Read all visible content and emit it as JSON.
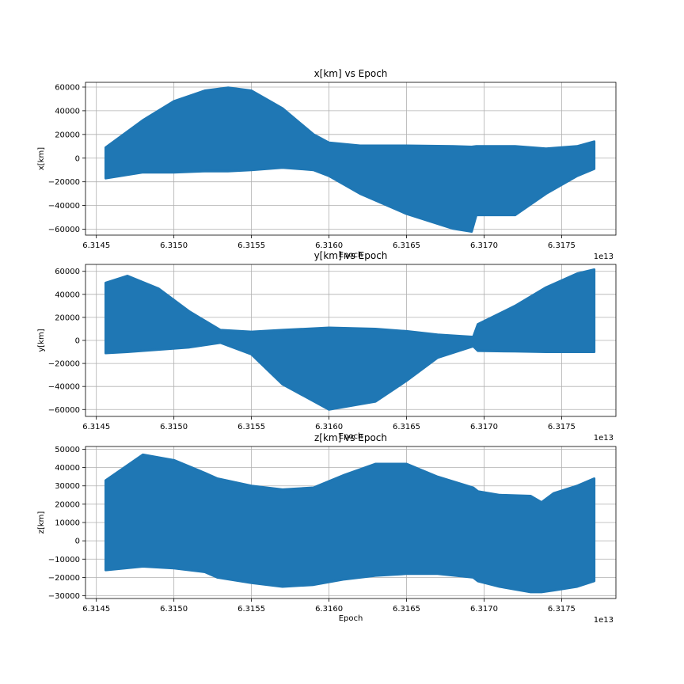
{
  "colors": {
    "series": "#1f77b4",
    "grid": "#b0b0b0",
    "axis": "#000000",
    "background": "#ffffff"
  },
  "chart_data": [
    {
      "type": "scatter",
      "title": "x[km] vs Epoch",
      "xlabel": "Epoch",
      "ylabel": "x[km]",
      "x_offset_label": "1e13",
      "xlim": [
        6.31443,
        6.31785
      ],
      "ylim": [
        -65000,
        64000
      ],
      "x_ticks": [
        6.3145,
        6.315,
        6.3155,
        6.316,
        6.3165,
        6.317,
        6.3175
      ],
      "x_tick_labels": [
        "6.3145",
        "6.3150",
        "6.3155",
        "6.3160",
        "6.3165",
        "6.3170",
        "6.3175"
      ],
      "y_ticks": [
        -60000,
        -40000,
        -20000,
        0,
        20000,
        40000,
        60000
      ],
      "y_tick_labels": [
        "−60000",
        "−40000",
        "−20000",
        "0",
        "20000",
        "40000",
        "60000"
      ],
      "grid": true,
      "legend": "none",
      "series": [
        {
          "x": [
            6.31456,
            6.3148,
            6.315,
            6.3152,
            6.31535,
            6.3155,
            6.3157,
            6.3159,
            6.316,
            6.3162,
            6.3165,
            6.3168,
            6.31692,
            6.31695,
            6.3172,
            6.3174,
            6.3176,
            6.31771
          ],
          "upper": [
            9000,
            32000,
            48000,
            57000,
            59500,
            57000,
            42000,
            20000,
            13000,
            10500,
            10500,
            10000,
            9500,
            10000,
            10000,
            8000,
            10000,
            14000
          ],
          "lower": [
            -17000,
            -12000,
            -12000,
            -11000,
            -11000,
            -10000,
            -8000,
            -10000,
            -15000,
            -30000,
            -47000,
            -59500,
            -62000,
            -48000,
            -48000,
            -30000,
            -15000,
            -9000
          ]
        }
      ]
    },
    {
      "type": "scatter",
      "title": "y[km] vs Epoch",
      "xlabel": "Epoch",
      "ylabel": "y[km]",
      "x_offset_label": "1e13",
      "xlim": [
        6.31443,
        6.31785
      ],
      "ylim": [
        -66000,
        66000
      ],
      "x_ticks": [
        6.3145,
        6.315,
        6.3155,
        6.316,
        6.3165,
        6.317,
        6.3175
      ],
      "x_tick_labels": [
        "6.3145",
        "6.3150",
        "6.3155",
        "6.3160",
        "6.3165",
        "6.3170",
        "6.3175"
      ],
      "y_ticks": [
        -60000,
        -40000,
        -20000,
        0,
        20000,
        40000,
        60000
      ],
      "y_tick_labels": [
        "−60000",
        "−40000",
        "−20000",
        "0",
        "20000",
        "40000",
        "60000"
      ],
      "grid": true,
      "legend": "none",
      "series": [
        {
          "x": [
            6.31456,
            6.3147,
            6.3149,
            6.3151,
            6.3153,
            6.3155,
            6.3157,
            6.316,
            6.3163,
            6.3165,
            6.3167,
            6.31693,
            6.31696,
            6.3172,
            6.3174,
            6.3176,
            6.31771
          ],
          "upper": [
            50000,
            56000,
            45000,
            25000,
            9000,
            7500,
            9000,
            11000,
            10000,
            8000,
            5000,
            3000,
            14000,
            30000,
            46000,
            58000,
            61500
          ],
          "lower": [
            -11000,
            -10000,
            -8000,
            -6000,
            -2000,
            -12000,
            -38000,
            -60000,
            -53000,
            -35000,
            -15000,
            -5000,
            -9000,
            -9500,
            -10000,
            -10000,
            -10000
          ]
        }
      ]
    },
    {
      "type": "scatter",
      "title": "z[km] vs Epoch",
      "xlabel": "Epoch",
      "ylabel": "z[km]",
      "x_offset_label": "1e13",
      "xlim": [
        6.31443,
        6.31785
      ],
      "ylim": [
        -31500,
        51500
      ],
      "x_ticks": [
        6.3145,
        6.315,
        6.3155,
        6.316,
        6.3165,
        6.317,
        6.3175
      ],
      "x_tick_labels": [
        "6.3145",
        "6.3150",
        "6.3155",
        "6.3160",
        "6.3165",
        "6.3170",
        "6.3175"
      ],
      "y_ticks": [
        -30000,
        -20000,
        -10000,
        0,
        10000,
        20000,
        30000,
        40000,
        50000
      ],
      "y_tick_labels": [
        "−30000",
        "−20000",
        "−10000",
        "0",
        "10000",
        "20000",
        "30000",
        "40000",
        "50000"
      ],
      "grid": true,
      "legend": "none",
      "series": [
        {
          "x": [
            6.31456,
            6.3148,
            6.315,
            6.3152,
            6.31528,
            6.3155,
            6.3157,
            6.3159,
            6.3161,
            6.3163,
            6.3165,
            6.3167,
            6.31693,
            6.31696,
            6.3171,
            6.3173,
            6.31737,
            6.31745,
            6.3176,
            6.31771
          ],
          "upper": [
            33000,
            47000,
            44000,
            37000,
            34000,
            30000,
            28000,
            29000,
            36000,
            42000,
            42000,
            35000,
            29000,
            27000,
            25000,
            24500,
            21000,
            26000,
            30000,
            34000
          ],
          "lower": [
            -16000,
            -14000,
            -15000,
            -17000,
            -20000,
            -23000,
            -25000,
            -24000,
            -21000,
            -19000,
            -18000,
            -18000,
            -20000,
            -22000,
            -25000,
            -28000,
            -28000,
            -27000,
            -25000,
            -22000
          ]
        }
      ]
    }
  ]
}
